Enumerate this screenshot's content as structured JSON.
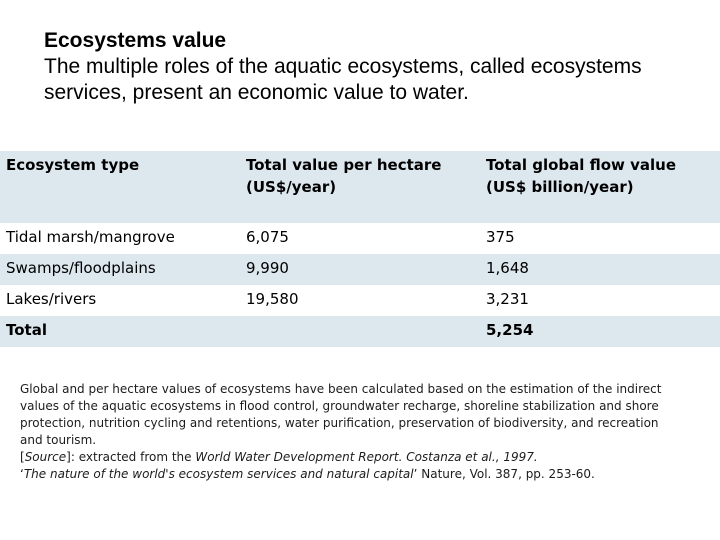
{
  "header": {
    "title": "Ecosystems value",
    "subtitle": "The multiple roles of the aquatic ecosystems, called ecosystems services, present an economic value to water."
  },
  "table": {
    "columns": [
      "Ecosystem type",
      "Total value per hectare (US$/year)",
      "Total global flow value (US$ billion/year)"
    ],
    "rows": [
      [
        "Tidal marsh/mangrove",
        "6,075",
        "375"
      ],
      [
        "Swamps/floodplains",
        "9,990",
        "1,648"
      ],
      [
        "Lakes/rivers",
        "19,580",
        "3,231"
      ]
    ],
    "total": {
      "label": "Total",
      "value_per_hectare": "",
      "global_flow": "5,254"
    },
    "band_color": "#dde7ee"
  },
  "footnote": {
    "paragraph": "Global and per hectare values of ecosystems have been calculated based on the estimation of the indirect values of the aquatic ecosystems in flood control, groundwater recharge, shoreline stabilization and shore protection, nutrition cycling and retentions, water purification, preservation of biodiversity, and recreation and tourism.",
    "source_open": "[",
    "source_word": "Source",
    "source_mid": "]: extracted from the ",
    "report_title": "World Water Development Report. Costanza et al., 1997.",
    "quote_open": "‘",
    "article_title": "The nature of the world's ecosystem services and natural capital",
    "quote_rest": "’ Nature, Vol. 387, pp. 253-60."
  }
}
